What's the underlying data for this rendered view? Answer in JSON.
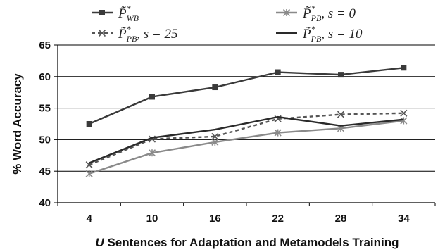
{
  "chart_data": {
    "type": "line",
    "categories": [
      "4",
      "10",
      "16",
      "22",
      "28",
      "34"
    ],
    "ylabel": "% Word Accuracy",
    "xlabel_var": "U",
    "xlabel_rest": " Sentences for Adaptation and Metamodels Training",
    "ylim": [
      40,
      65
    ],
    "yticks": [
      40,
      45,
      50,
      55,
      60,
      65
    ],
    "grid": true,
    "legend_position": "top",
    "series": [
      {
        "key": "pwb",
        "symbol": "P̃",
        "sup": "*",
        "sub": "WB",
        "suffix": "",
        "values": [
          52.5,
          56.8,
          58.3,
          60.7,
          60.3,
          61.4
        ],
        "color": "#3a3a3a",
        "dash": "",
        "marker": "square"
      },
      {
        "key": "ppb0",
        "symbol": "P̃",
        "sup": "*",
        "sub": "PB",
        "suffix": ", s = 0",
        "values": [
          44.6,
          47.9,
          49.6,
          51.1,
          51.8,
          53.0
        ],
        "color": "#8a8a8a",
        "dash": "",
        "marker": "star"
      },
      {
        "key": "ppb25",
        "symbol": "P̃",
        "sup": "*",
        "sub": "PB",
        "suffix": ", s = 25",
        "values": [
          46.0,
          50.1,
          50.5,
          53.3,
          54.0,
          54.2
        ],
        "color": "#555555",
        "dash": "5,4",
        "marker": "x"
      },
      {
        "key": "ppb10",
        "symbol": "P̃",
        "sup": "*",
        "sub": "PB",
        "suffix": ", s = 10",
        "values": [
          46.3,
          50.3,
          51.6,
          53.6,
          52.2,
          53.2
        ],
        "color": "#2a2a2a",
        "dash": "",
        "marker": "none"
      }
    ]
  }
}
